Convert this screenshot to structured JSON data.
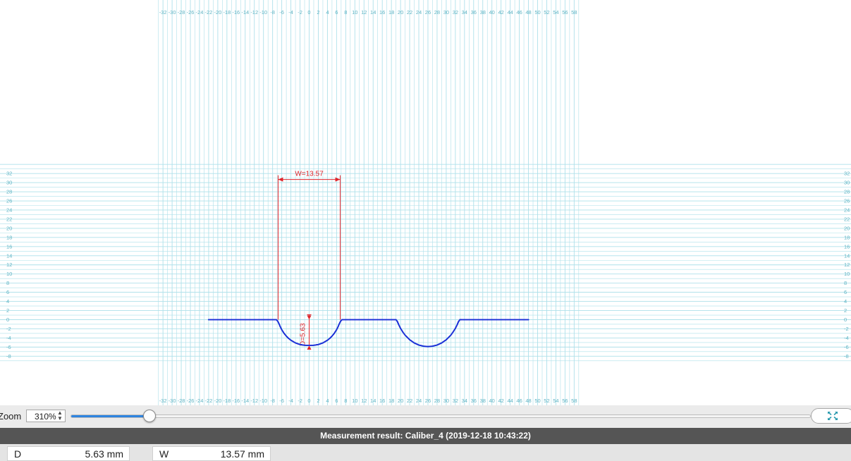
{
  "plot": {
    "x_ticks": [
      -32,
      -30,
      -28,
      -26,
      -24,
      -22,
      -20,
      -18,
      -16,
      -14,
      -12,
      -10,
      -8,
      -6,
      -4,
      -2,
      0,
      2,
      4,
      6,
      8,
      10,
      12,
      14,
      16,
      18,
      20,
      22,
      24,
      26,
      28,
      30,
      32,
      34,
      36,
      38,
      40,
      42,
      44,
      46,
      48,
      50,
      52,
      54,
      56,
      58
    ],
    "y_ticks": [
      32,
      30,
      28,
      26,
      24,
      22,
      20,
      18,
      16,
      14,
      12,
      10,
      8,
      6,
      4,
      2,
      0,
      -2,
      -4,
      -6,
      -8
    ],
    "colors": {
      "grid": "#aee0ea",
      "tick_text": "#5fb4c4",
      "profile": "#1a2fd6",
      "dimension": "#e0252b"
    },
    "profile": {
      "x": [
        -22,
        -14,
        -7.2,
        -6.9,
        -6.6,
        -6.3,
        -6,
        -5.5,
        -5,
        -4.5,
        -4,
        -3,
        -2,
        -1,
        0,
        1,
        2,
        3,
        4,
        4.5,
        5,
        5.5,
        6,
        6.3,
        6.6,
        6.9,
        7.2,
        14,
        19,
        19.3,
        19.6,
        20,
        20.5,
        21,
        22,
        23,
        24,
        25,
        26,
        27,
        28,
        29,
        30,
        31,
        31.5,
        32,
        32.4,
        32.7,
        33,
        33.4,
        40,
        48
      ],
      "y": [
        0,
        0,
        0,
        -0.3,
        -0.9,
        -1.6,
        -2.2,
        -3,
        -3.6,
        -4.1,
        -4.5,
        -5.1,
        -5.45,
        -5.6,
        -5.63,
        -5.6,
        -5.45,
        -5.1,
        -4.5,
        -4.1,
        -3.6,
        -3,
        -2.2,
        -1.6,
        -0.9,
        -0.3,
        0,
        0,
        0,
        -0.4,
        -1.1,
        -1.9,
        -2.7,
        -3.4,
        -4.4,
        -5.1,
        -5.55,
        -5.8,
        -5.9,
        -5.8,
        -5.55,
        -5.1,
        -4.4,
        -3.4,
        -2.7,
        -1.9,
        -1.1,
        -0.4,
        0,
        0,
        0,
        0
      ]
    },
    "width_dim": {
      "label": "W=13.57",
      "x1": -6.8,
      "x2": 6.8,
      "y": 30.7
    },
    "depth_dim": {
      "label": "D=5.63",
      "x": 0,
      "y1": 0,
      "y2": -5.63
    }
  },
  "zoom": {
    "label": "Zoom",
    "value": "310%",
    "slider_fraction": 0.108,
    "fit_icon": "fit-to-screen-icon",
    "accent": "#2e84e0"
  },
  "result": {
    "title": "Measurement result: Caliber_4 (2019-12-18 10:43:22)",
    "values": [
      {
        "label": "D",
        "value": "5.63 mm"
      },
      {
        "label": "W",
        "value": "13.57 mm"
      }
    ]
  }
}
